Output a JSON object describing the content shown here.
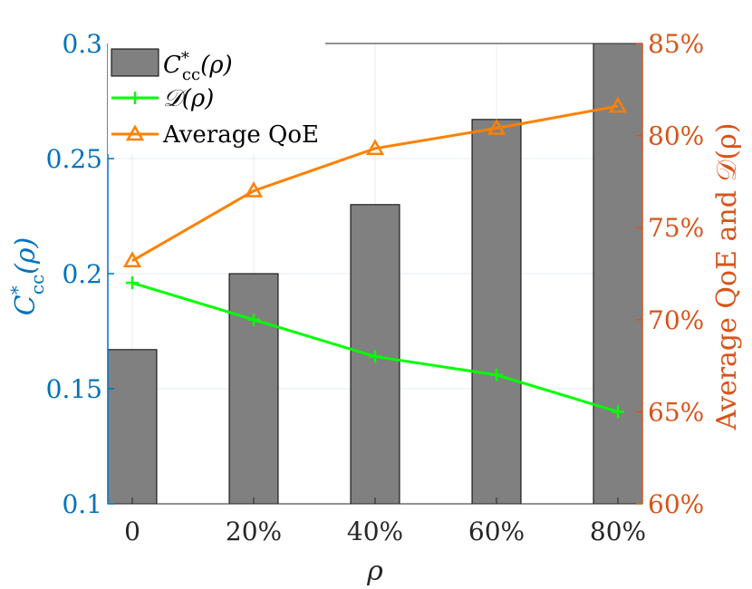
{
  "chart_data": {
    "type": "bar+line",
    "x_categories": [
      "0",
      "20%",
      "40%",
      "60%",
      "80%"
    ],
    "xlabel": "ρ",
    "left_axis": {
      "label_main": "C",
      "label_sup": "*",
      "label_sub": "cc",
      "label_arg": "(ρ)",
      "range": [
        0.1,
        0.3
      ],
      "ticks": [
        "0.1",
        "0.15",
        "0.2",
        "0.25",
        "0.3"
      ],
      "tick_values": [
        0.1,
        0.15,
        0.2,
        0.25,
        0.3
      ],
      "color": "#0072BD"
    },
    "right_axis": {
      "label": "Average QoE and 𝒟(ρ)",
      "range": [
        60,
        85
      ],
      "ticks": [
        "60%",
        "65%",
        "70%",
        "75%",
        "80%",
        "85%"
      ],
      "tick_values": [
        60,
        65,
        70,
        75,
        80,
        85
      ],
      "color": "#D95319"
    },
    "series": [
      {
        "name": "C*cc(ρ)",
        "legend_main": "C",
        "legend_sup": "*",
        "legend_sub": "cc",
        "legend_arg": "(ρ)",
        "type": "bar",
        "axis": "left",
        "values": [
          0.167,
          0.2,
          0.23,
          0.267,
          0.3
        ],
        "color": "#808080"
      },
      {
        "name": "𝒟(ρ)",
        "type": "line",
        "marker": "plus",
        "axis": "right",
        "values": [
          72,
          70,
          68,
          67,
          65
        ],
        "color": "#00FF00"
      },
      {
        "name": "Average QoE",
        "type": "line",
        "marker": "triangle",
        "axis": "right",
        "values": [
          73.2,
          77,
          79.3,
          80.4,
          81.6
        ],
        "color": "#FF8000"
      }
    ],
    "grid": true,
    "legend_position": "top-left"
  }
}
